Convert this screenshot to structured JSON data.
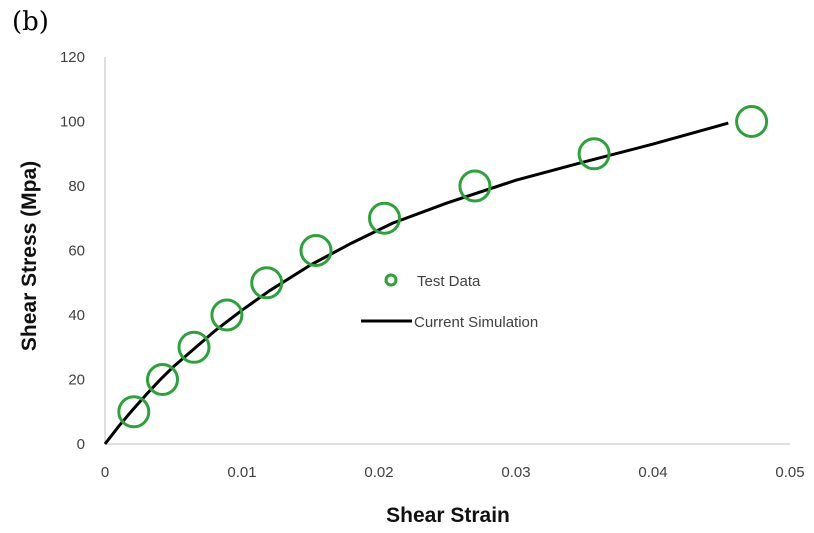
{
  "chart_data": {
    "type": "scatter",
    "panel_label": "(b)",
    "xlabel": "Shear Strain",
    "ylabel": "Shear Stress (Mpa)",
    "xlim": [
      0,
      0.05
    ],
    "ylim": [
      0,
      120
    ],
    "x_ticks": [
      "0",
      "0.01",
      "0.02",
      "0.03",
      "0.04",
      "0.05"
    ],
    "y_ticks": [
      "0",
      "20",
      "40",
      "60",
      "80",
      "100",
      "120"
    ],
    "x_tick_values": [
      0,
      0.01,
      0.02,
      0.03,
      0.04,
      0.05
    ],
    "y_tick_values": [
      0,
      20,
      40,
      60,
      80,
      100,
      120
    ],
    "grid": false,
    "legend_position": "center-right",
    "series": [
      {
        "name": "Test Data",
        "kind": "scatter",
        "marker": "open-circle",
        "color": "#2ca33a",
        "x": [
          0.0021,
          0.0042,
          0.0065,
          0.0089,
          0.0118,
          0.0154,
          0.0204,
          0.027,
          0.0357,
          0.0472
        ],
        "y": [
          10,
          20,
          30,
          40,
          50,
          60,
          70,
          80,
          90,
          100
        ]
      },
      {
        "name": "Current Simulation",
        "kind": "line",
        "color": "#000000",
        "x": [
          0,
          0.001,
          0.002,
          0.003,
          0.004,
          0.005,
          0.0065,
          0.008,
          0.01,
          0.012,
          0.015,
          0.018,
          0.021,
          0.025,
          0.03,
          0.035,
          0.04,
          0.0455
        ],
        "y": [
          0,
          5.5,
          10.5,
          15.3,
          19.8,
          24,
          29.5,
          35,
          41.5,
          47.5,
          55.5,
          62.3,
          68.5,
          74.8,
          81.8,
          87.5,
          93,
          99.5
        ]
      }
    ]
  }
}
